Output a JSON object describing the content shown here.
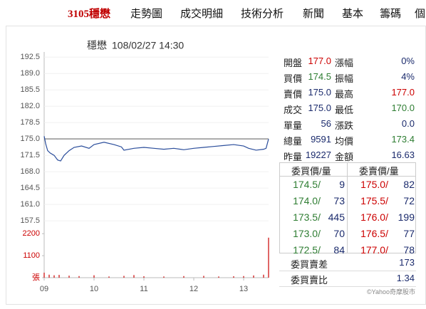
{
  "nav": [
    "3105穩懋",
    "走勢圖",
    "成交明細",
    "技術分析",
    "新聞",
    "基本",
    "籌碼",
    "個"
  ],
  "chart_data": {
    "type": "line",
    "title": "穩懋",
    "subtitle": "108/02/27 14:30",
    "xlim": [
      9,
      13.5
    ],
    "xticks": [
      {
        "value": 9,
        "label": "09"
      },
      10,
      11,
      12,
      13
    ],
    "ylim": [
      156,
      193.6
    ],
    "yticks": [
      192.5,
      {
        "value": 189,
        "label": "189.0"
      },
      185.5,
      {
        "value": 182,
        "label": "182.0"
      },
      178.5,
      {
        "value": 175,
        "label": "175.0"
      },
      171.5,
      {
        "value": 168,
        "label": "168.0"
      },
      164.5,
      {
        "value": 161,
        "label": "161.0"
      },
      157.5
    ],
    "reference_line": 175,
    "y2lim": [
      0,
      2420
    ],
    "y2ticks": [
      {
        "value": 0,
        "label": "張"
      },
      1100,
      2200
    ],
    "grid": true,
    "series": [
      {
        "color": "#2a4d9b",
        "x": [
          9.0,
          9.03,
          9.07,
          9.12,
          9.2,
          9.27,
          9.33,
          9.4,
          9.5,
          9.6,
          9.75,
          9.9,
          10.0,
          10.2,
          10.4,
          10.55,
          10.6,
          10.8,
          11.0,
          11.2,
          11.4,
          11.6,
          11.8,
          12.0,
          12.2,
          12.4,
          12.6,
          12.8,
          13.0,
          13.1,
          13.25,
          13.4,
          13.45,
          13.5
        ],
        "values": [
          175.6,
          174.0,
          172.5,
          172.0,
          171.5,
          170.5,
          170.3,
          171.5,
          172.5,
          173.2,
          173.5,
          173.0,
          173.8,
          174.3,
          173.8,
          173.3,
          172.6,
          173.0,
          173.2,
          173.0,
          172.8,
          173.0,
          172.7,
          173.0,
          173.2,
          173.4,
          173.6,
          173.8,
          173.5,
          173.0,
          172.6,
          172.8,
          173.0,
          175.0
        ]
      },
      {
        "color": "#cc0000",
        "axis": "y2",
        "x": [
          9.0,
          9.1,
          9.2,
          9.3,
          9.5,
          9.7,
          10.0,
          10.3,
          10.6,
          10.8,
          11.0,
          11.4,
          11.8,
          12.2,
          12.5,
          12.8,
          13.0,
          13.2,
          13.4,
          13.5
        ],
        "values": [
          250,
          150,
          120,
          140,
          100,
          80,
          120,
          60,
          90,
          130,
          70,
          60,
          80,
          90,
          60,
          70,
          80,
          110,
          150,
          2000
        ]
      }
    ]
  },
  "quote": {
    "rows": [
      [
        [
          "開盤",
          "177.0",
          "#cc0000"
        ],
        [
          "漲幅",
          "0%",
          "#1a2a6c"
        ]
      ],
      [
        [
          "買價",
          "174.5",
          "#2e7d32"
        ],
        [
          "振幅",
          "4%",
          "#1a2a6c"
        ]
      ],
      [
        [
          "賣價",
          "175.0",
          "#1a2a6c"
        ],
        [
          "最高",
          "177.0",
          "#cc0000"
        ]
      ],
      [
        [
          "成交",
          "175.0",
          "#1a2a6c"
        ],
        [
          "最低",
          "170.0",
          "#2e7d32"
        ]
      ],
      [
        [
          "單量",
          "56",
          "#1a2a6c"
        ],
        [
          "漲跌",
          "0.0",
          "#1a2a6c"
        ]
      ],
      [
        [
          "總量",
          "9591",
          "#1a2a6c"
        ],
        [
          "均價",
          "173.4",
          "#2e7d32"
        ]
      ],
      [
        [
          "昨量",
          "19227",
          "#1a2a6c"
        ],
        [
          "金額",
          "16.63",
          "#1a2a6c"
        ]
      ]
    ]
  },
  "order_book": {
    "headers": [
      "委買價/量",
      "委賣價/量"
    ],
    "rows": [
      [
        "174.5/",
        "9",
        "175.0/",
        "82"
      ],
      [
        "174.0/",
        "73",
        "175.5/",
        "72"
      ],
      [
        "173.5/",
        "445",
        "176.0/",
        "199"
      ],
      [
        "173.0/",
        "70",
        "176.5/",
        "77"
      ],
      [
        "172.5/",
        "84",
        "177.0/",
        "78"
      ]
    ],
    "summary": [
      [
        "委買賣差",
        "173"
      ],
      [
        "委買賣比",
        "1.34"
      ]
    ]
  },
  "footer": "©Yahoo奇摩股市"
}
